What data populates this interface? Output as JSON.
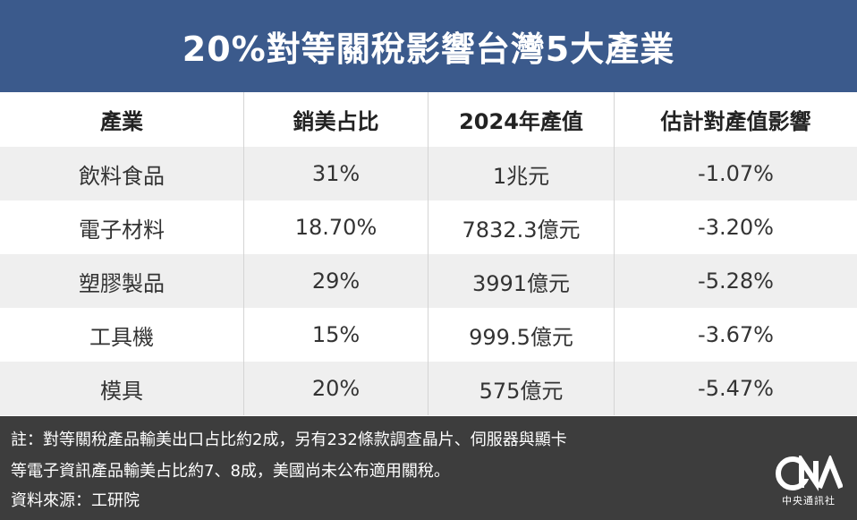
{
  "title": "20%對等關稅影響台灣5大產業",
  "table": {
    "headers": [
      "產業",
      "銷美占比",
      "2024年產值",
      "估計對產值影響"
    ],
    "rows": [
      [
        "飲料食品",
        "31%",
        "1兆元",
        "-1.07%"
      ],
      [
        "電子材料",
        "18.70%",
        "7832.3億元",
        "-3.20%"
      ],
      [
        "塑膠製品",
        "29%",
        "3991億元",
        "-5.28%"
      ],
      [
        "工具機",
        "15%",
        "999.5億元",
        "-3.67%"
      ],
      [
        "模具",
        "20%",
        "575億元",
        "-5.47%"
      ]
    ]
  },
  "footer": {
    "note_line1": "註：對等關稅產品輸美出口占比約2成，另有232條款調查晶片、伺服器與顯卡",
    "note_line2": "等電子資訊產品輸美占比約7、8成，美國尚未公布適用關稅。",
    "source": "資料來源：工研院"
  },
  "logo": {
    "letters": "CNA",
    "name": "中央通訊社"
  },
  "colors": {
    "title_bg": "#3b5a8c",
    "row_alt_bg": "#efefef",
    "footer_bg": "#3d3d3d"
  }
}
